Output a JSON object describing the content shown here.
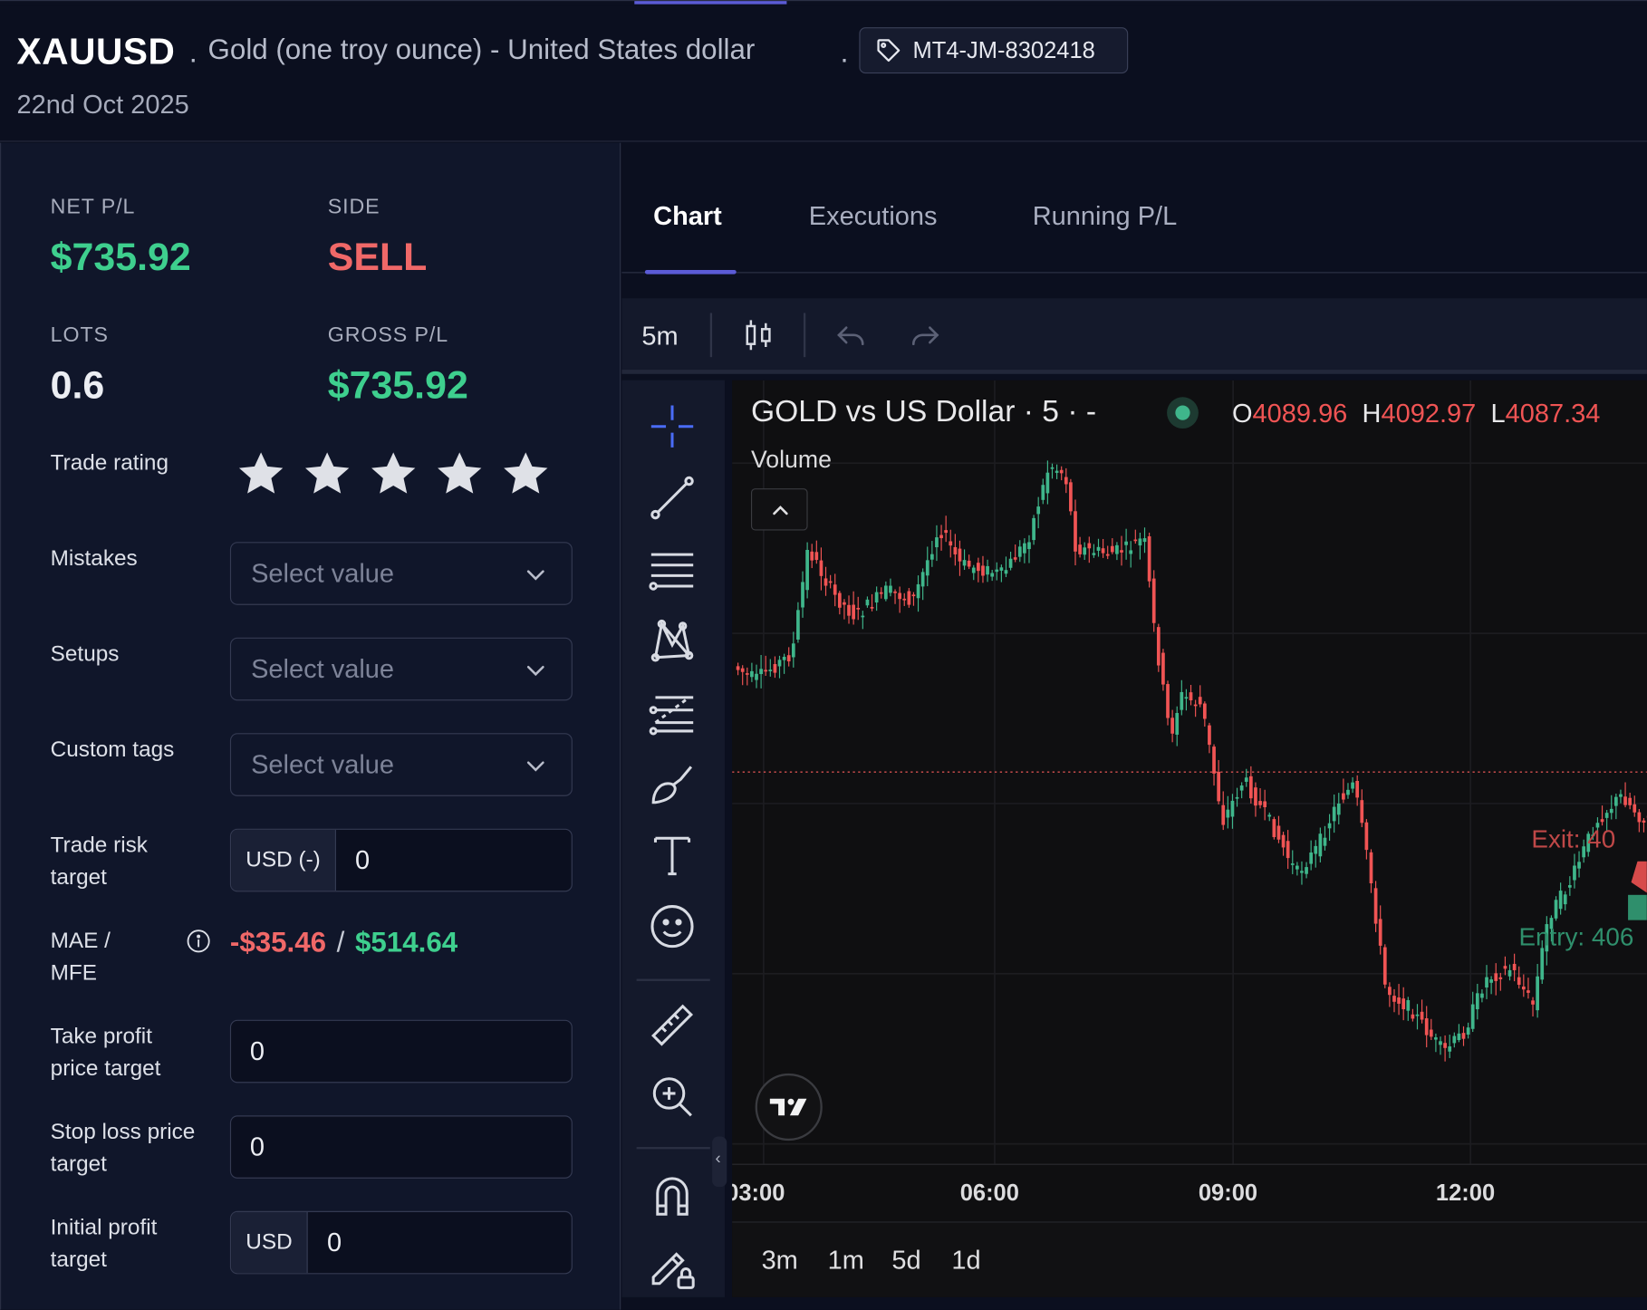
{
  "header": {
    "symbol": "XAUUSD",
    "separator": ".",
    "description": "Gold (one troy ounce) - United States dollar",
    "account_tag": "MT4-JM-8302418",
    "date": "22nd Oct 2025"
  },
  "stats": {
    "net_pl_label": "NET P/L",
    "net_pl_value": "$735.92",
    "side_label": "SIDE",
    "side_value": "SELL",
    "lots_label": "LOTS",
    "lots_value": "0.6",
    "gross_pl_label": "GROSS P/L",
    "gross_pl_value": "$735.92"
  },
  "form": {
    "trade_rating_label": "Trade rating",
    "trade_rating_stars": 5,
    "mistakes_label": "Mistakes",
    "mistakes_placeholder": "Select value",
    "setups_label": "Setups",
    "setups_placeholder": "Select value",
    "custom_tags_label": "Custom tags",
    "custom_tags_placeholder": "Select value",
    "trade_risk_label": "Trade risk target",
    "trade_risk_prefix": "USD (-)",
    "trade_risk_value": "0",
    "mae_mfe_label": "MAE / MFE",
    "mae_value": "-$35.46",
    "mae_separator": "/",
    "mfe_value": "$514.64",
    "take_profit_label": "Take profit price target",
    "take_profit_value": "0",
    "stop_loss_label": "Stop loss price target",
    "stop_loss_value": "0",
    "initial_profit_label": "Initial profit target",
    "initial_profit_prefix": "USD",
    "initial_profit_value": "0"
  },
  "tabs": [
    {
      "label": "Chart",
      "active": true
    },
    {
      "label": "Executions",
      "active": false
    },
    {
      "label": "Running P/L",
      "active": false
    }
  ],
  "toolbar": {
    "interval": "5m",
    "icons": [
      "candlestick-icon",
      "undo-icon",
      "redo-icon"
    ]
  },
  "drawing_tools": [
    "crosshair-icon",
    "trend-line-icon",
    "horizontal-lines-icon",
    "pattern-icon",
    "fib-icon",
    "brush-icon",
    "text-icon",
    "emoji-icon",
    "ruler-icon",
    "zoom-in-icon",
    "magnet-icon",
    "lock-drawing-icon"
  ],
  "chart": {
    "title": "GOLD vs US Dollar · 5 · -",
    "ohlc": {
      "o_label": "O",
      "o": "4089.96",
      "h_label": "H",
      "h": "4092.97",
      "l_label": "L",
      "l": "4087.34"
    },
    "volume_label": "Volume",
    "exit_label": "Exit: 40",
    "entry_label": "Entry: 406",
    "colors": {
      "up": "#3fb68b",
      "down": "#f05454",
      "background": "#0f0f11"
    }
  },
  "chart_data": {
    "type": "candlestick",
    "title": "GOLD vs US Dollar · 5 · -",
    "x_ticks": [
      "03:00",
      "06:00",
      "09:00",
      "12:00"
    ],
    "note_levels": {
      "exit_marker": "Exit",
      "entry_marker": "Entry"
    }
  },
  "range_buttons": [
    "3m",
    "1m",
    "5d",
    "1d"
  ]
}
